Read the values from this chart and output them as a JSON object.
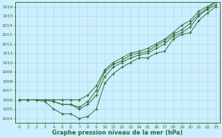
{
  "x": [
    0,
    1,
    2,
    3,
    4,
    5,
    6,
    7,
    8,
    9,
    10,
    11,
    12,
    13,
    14,
    15,
    16,
    17,
    18,
    19,
    20,
    21,
    22,
    23
  ],
  "line1": [
    1006.0,
    1006.0,
    1006.0,
    1005.8,
    1005.0,
    1004.5,
    1004.5,
    1004.0,
    1004.2,
    1005.0,
    1007.8,
    1008.8,
    1009.5,
    1010.0,
    1010.5,
    1010.5,
    1011.0,
    1011.2,
    1012.5,
    1013.0,
    1013.2,
    1014.5,
    1015.3,
    1016.0
  ],
  "line2": [
    1006.0,
    1006.0,
    1006.0,
    1006.0,
    1005.8,
    1005.5,
    1005.5,
    1005.0,
    1005.5,
    1006.5,
    1008.5,
    1009.5,
    1010.0,
    1010.5,
    1010.8,
    1011.0,
    1011.5,
    1012.0,
    1012.8,
    1013.2,
    1013.8,
    1015.0,
    1015.7,
    1016.2
  ],
  "line3": [
    1006.0,
    1006.0,
    1006.0,
    1006.0,
    1005.8,
    1005.5,
    1005.5,
    1005.2,
    1005.8,
    1007.0,
    1009.0,
    1009.8,
    1010.2,
    1010.8,
    1011.0,
    1011.2,
    1011.8,
    1012.3,
    1013.0,
    1013.5,
    1014.2,
    1015.2,
    1015.8,
    1016.5
  ],
  "line4": [
    1006.0,
    1006.0,
    1006.0,
    1006.0,
    1006.0,
    1006.0,
    1006.0,
    1006.0,
    1006.5,
    1007.5,
    1009.2,
    1010.0,
    1010.5,
    1011.0,
    1011.2,
    1011.5,
    1012.0,
    1012.5,
    1013.2,
    1014.0,
    1014.5,
    1015.5,
    1016.0,
    1016.5
  ],
  "line_color": "#2d6a2d",
  "bg_color": "#cceeff",
  "grid_color": "#aadddd",
  "xlabel": "Graphe pression niveau de la mer (hPa)",
  "ylim": [
    1004,
    1016
  ],
  "xlim": [
    0,
    23
  ],
  "yticks": [
    1004,
    1005,
    1006,
    1007,
    1008,
    1009,
    1010,
    1011,
    1012,
    1013,
    1014,
    1015,
    1016
  ],
  "xticks": [
    0,
    1,
    2,
    3,
    4,
    5,
    6,
    7,
    8,
    9,
    10,
    11,
    12,
    13,
    14,
    15,
    16,
    17,
    18,
    19,
    20,
    21,
    22,
    23
  ]
}
